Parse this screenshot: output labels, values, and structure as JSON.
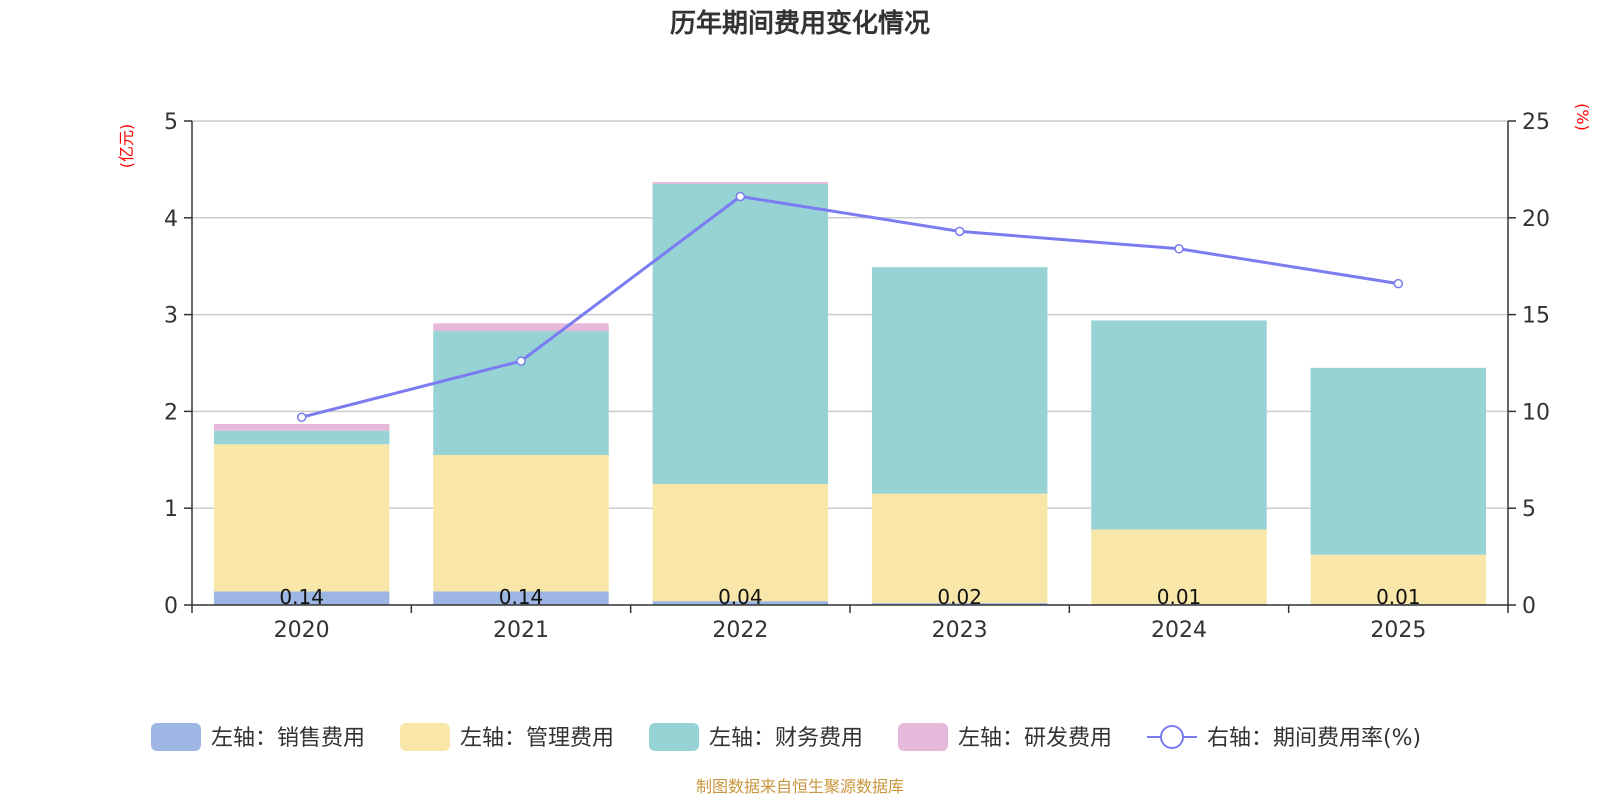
{
  "chart_data": {
    "type": "bar",
    "title": "历年期间费用变化情况",
    "categories": [
      "2020",
      "2021",
      "2022",
      "2023",
      "2024",
      "2025"
    ],
    "left_axis": {
      "unit_label": "(亿元)",
      "ylim": [
        0,
        5
      ],
      "ticks": [
        "0",
        "1",
        "2",
        "3",
        "4",
        "5"
      ]
    },
    "right_axis": {
      "unit_label": "(%)",
      "ylim": [
        0,
        25
      ],
      "ticks": [
        "0",
        "5",
        "10",
        "15",
        "20",
        "25"
      ]
    },
    "series": [
      {
        "name": "左轴：销售费用",
        "axis": "left",
        "kind": "stacked-bar",
        "color": "#9db5e3",
        "values": [
          0.14,
          0.14,
          0.04,
          0.02,
          0.01,
          0.01
        ],
        "labels": [
          "0.14",
          "0.14",
          "0.04",
          "0.02",
          "0.01",
          "0.01"
        ]
      },
      {
        "name": "左轴：管理费用",
        "axis": "left",
        "kind": "stacked-bar",
        "color": "#f8e7a8",
        "values": [
          1.52,
          1.41,
          1.21,
          1.13,
          0.77,
          0.51
        ]
      },
      {
        "name": "左轴：财务费用",
        "axis": "left",
        "kind": "stacked-bar",
        "color": "#97d3d5",
        "values": [
          0.14,
          1.28,
          3.1,
          2.34,
          2.16,
          1.93
        ]
      },
      {
        "name": "左轴：研发费用",
        "axis": "left",
        "kind": "stacked-bar",
        "color": "#e6b8da",
        "values": [
          0.07,
          0.08,
          0.02,
          0.0,
          0.0,
          0.0
        ]
      },
      {
        "name": "右轴：期间费用率(%)",
        "axis": "right",
        "kind": "line",
        "color": "#7b7cf0",
        "values": [
          9.7,
          12.6,
          21.1,
          19.3,
          18.4,
          16.6
        ]
      }
    ],
    "grid": true,
    "legend_position": "bottom-center",
    "source_note": "制图数据来自恒生聚源数据库"
  }
}
